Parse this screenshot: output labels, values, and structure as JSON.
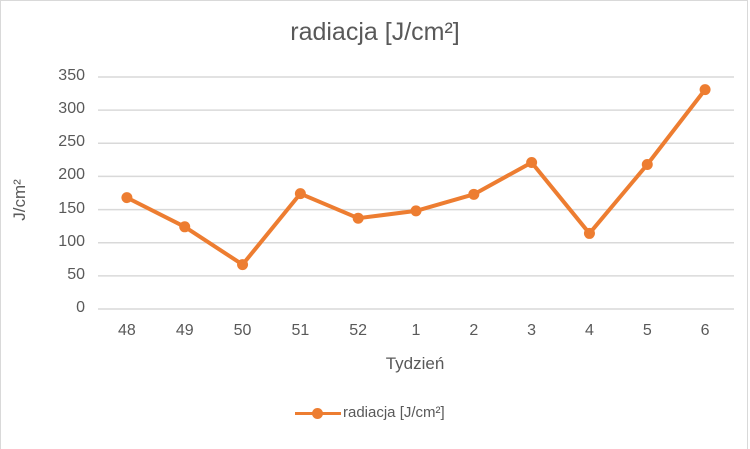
{
  "chart_data": {
    "type": "line",
    "title": "radiacja [J/cm²]",
    "xlabel": "Tydzień",
    "ylabel": "J/cm²",
    "categories": [
      "48",
      "49",
      "50",
      "51",
      "52",
      "1",
      "2",
      "3",
      "4",
      "5",
      "6"
    ],
    "series": [
      {
        "name": "radiacja [J/cm²]",
        "color": "#ed7d31",
        "values": [
          168,
          124,
          67,
          174,
          137,
          148,
          173,
          221,
          114,
          218,
          331
        ]
      }
    ],
    "ylim": [
      0,
      350
    ],
    "yticks": [
      0,
      50,
      100,
      150,
      200,
      250,
      300,
      350
    ],
    "grid": true,
    "legend_position": "bottom"
  },
  "title": "radiacja [J/cm²]",
  "xlabel": "Tydzień",
  "ylabel": "J/cm²",
  "legend": {
    "label": "radiacja [J/cm²]"
  }
}
